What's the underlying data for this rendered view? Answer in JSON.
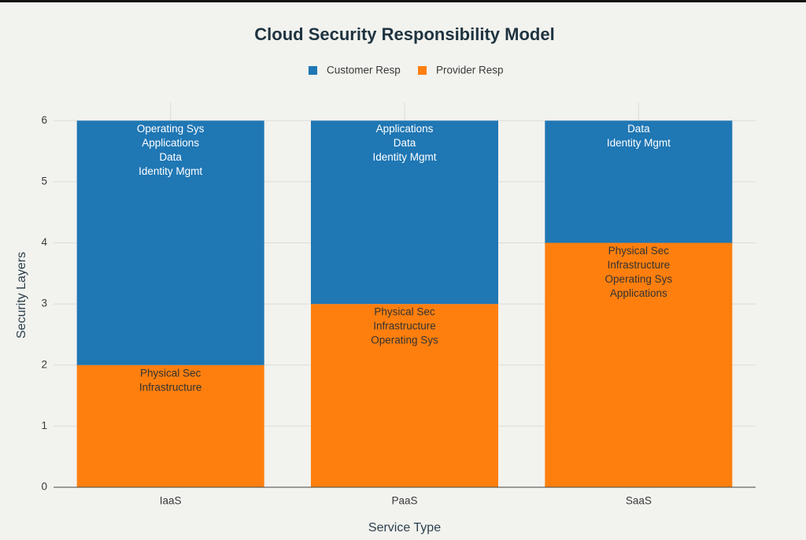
{
  "chart_data": {
    "type": "stacked-bar",
    "title": "Cloud Security Responsibility Model",
    "x_label": "Service Type",
    "y_label": "Security Layers",
    "categories": [
      "IaaS",
      "PaaS",
      "SaaS"
    ],
    "series": [
      {
        "name": "Customer Resp",
        "color": "#1f77b4",
        "values": [
          4,
          3,
          2
        ],
        "labels": [
          [
            "Operating Sys",
            "Applications",
            "Data",
            "Identity Mgmt"
          ],
          [
            "Applications",
            "Data",
            "Identity Mgmt"
          ],
          [
            "Data",
            "Identity Mgmt"
          ]
        ]
      },
      {
        "name": "Provider Resp",
        "color": "#ff7f0e",
        "values": [
          2,
          3,
          4
        ],
        "labels": [
          [
            "Physical Sec",
            "Infrastructure"
          ],
          [
            "Physical Sec",
            "Infrastructure",
            "Operating Sys"
          ],
          [
            "Physical Sec",
            "Infrastructure",
            "Operating Sys",
            "Applications"
          ]
        ]
      }
    ],
    "ylim": [
      0,
      6.3
    ],
    "yticks": [
      0,
      1,
      2,
      3,
      4,
      5,
      6
    ],
    "grid": true
  }
}
